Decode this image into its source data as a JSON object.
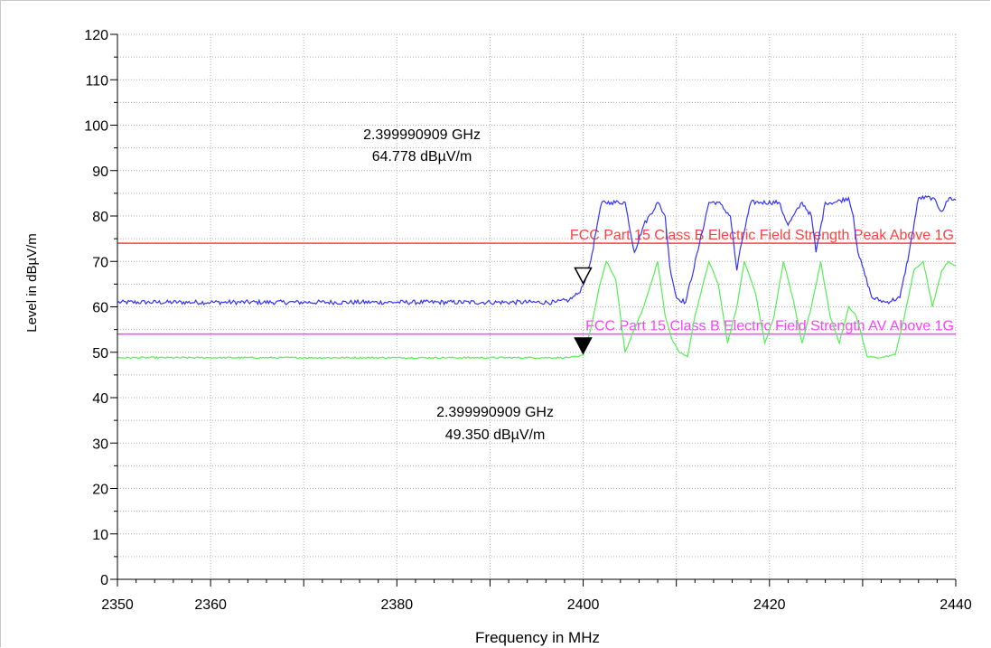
{
  "chart_data": {
    "type": "line",
    "xlabel": "Frequency in MHz",
    "ylabel": "Level in dBµV/m",
    "xlim": [
      2350,
      2440
    ],
    "ylim": [
      0,
      120
    ],
    "x_ticks": [
      2350,
      2360,
      2380,
      2400,
      2420,
      2440
    ],
    "y_ticks": [
      0,
      10,
      20,
      30,
      40,
      50,
      60,
      70,
      80,
      90,
      100,
      110,
      120
    ],
    "grid": true,
    "limit_lines": [
      {
        "label": "FCC Part 15 Class B Electric Field Strength Peak Above 1G",
        "value": 74,
        "color": "#ff4040"
      },
      {
        "label": "FCC Part 15 Class B Electric Field Strength AV Above 1G",
        "value": 54,
        "color": "#ff40ff"
      }
    ],
    "series": [
      {
        "color": "#3333ff",
        "x": [
          2350,
          2360,
          2370,
          2380,
          2390,
          2397,
          2398.5,
          2399.5,
          2400,
          2400.8,
          2401.5,
          2402,
          2403,
          2404.5,
          2405.5,
          2406.5,
          2408,
          2408.8,
          2409.3,
          2410,
          2411,
          2412.5,
          2413.5,
          2414.5,
          2415.8,
          2416.5,
          2417,
          2418,
          2419,
          2421,
          2422,
          2423.5,
          2424.5,
          2425,
          2426,
          2427,
          2428.5,
          2429,
          2429.5,
          2431,
          2432.5,
          2434,
          2435,
          2436,
          2437.5,
          2438.5,
          2439.3,
          2440
        ],
        "y": [
          61,
          61,
          61,
          61,
          61,
          61,
          61.5,
          63,
          64.8,
          70,
          78,
          83,
          83,
          83,
          72,
          78,
          83,
          80,
          69,
          62,
          61,
          74,
          83,
          83,
          80,
          68,
          74,
          83,
          83,
          83,
          78,
          83,
          80,
          72,
          83,
          83,
          84,
          80,
          72,
          62,
          61,
          62,
          72,
          84,
          84,
          81,
          84,
          83.5
        ]
      },
      {
        "color": "#55ee55",
        "x": [
          2350,
          2360,
          2370,
          2380,
          2390,
          2398,
          2399.5,
          2400,
          2400.8,
          2401.8,
          2402.5,
          2403.5,
          2404.5,
          2405.5,
          2406.5,
          2408,
          2408.8,
          2409.5,
          2410.3,
          2411.2,
          2412,
          2413.5,
          2414.5,
          2415.5,
          2416.5,
          2417.3,
          2418.5,
          2419.5,
          2420.5,
          2421.5,
          2422.5,
          2423.5,
          2424.5,
          2425.5,
          2426.5,
          2427.5,
          2428.5,
          2429.3,
          2430.5,
          2432,
          2433.5,
          2434.5,
          2435.5,
          2436.5,
          2437.5,
          2438.5,
          2439.2,
          2440
        ],
        "y": [
          48.8,
          48.8,
          48.8,
          48.8,
          48.8,
          48.8,
          49,
          49.4,
          55,
          65,
          70,
          66,
          50,
          55,
          60,
          70,
          58,
          53,
          50,
          49,
          58,
          70,
          65,
          52,
          60,
          70,
          63,
          52,
          58,
          70,
          62,
          52,
          60,
          70,
          58,
          52,
          60,
          58,
          49,
          48.8,
          49.5,
          58,
          68,
          70,
          60,
          68,
          70,
          69
        ]
      }
    ],
    "markers": [
      {
        "series": 0,
        "style": "open-triangle",
        "x": 2399.990909,
        "y": 64.778,
        "freq_label": "2.399990909 GHz",
        "level_label": "64.778 dBµV/m"
      },
      {
        "series": 1,
        "style": "filled-triangle",
        "x": 2399.990909,
        "y": 49.35,
        "freq_label": "2.399990909 GHz",
        "level_label": "49.350 dBµV/m"
      }
    ]
  }
}
